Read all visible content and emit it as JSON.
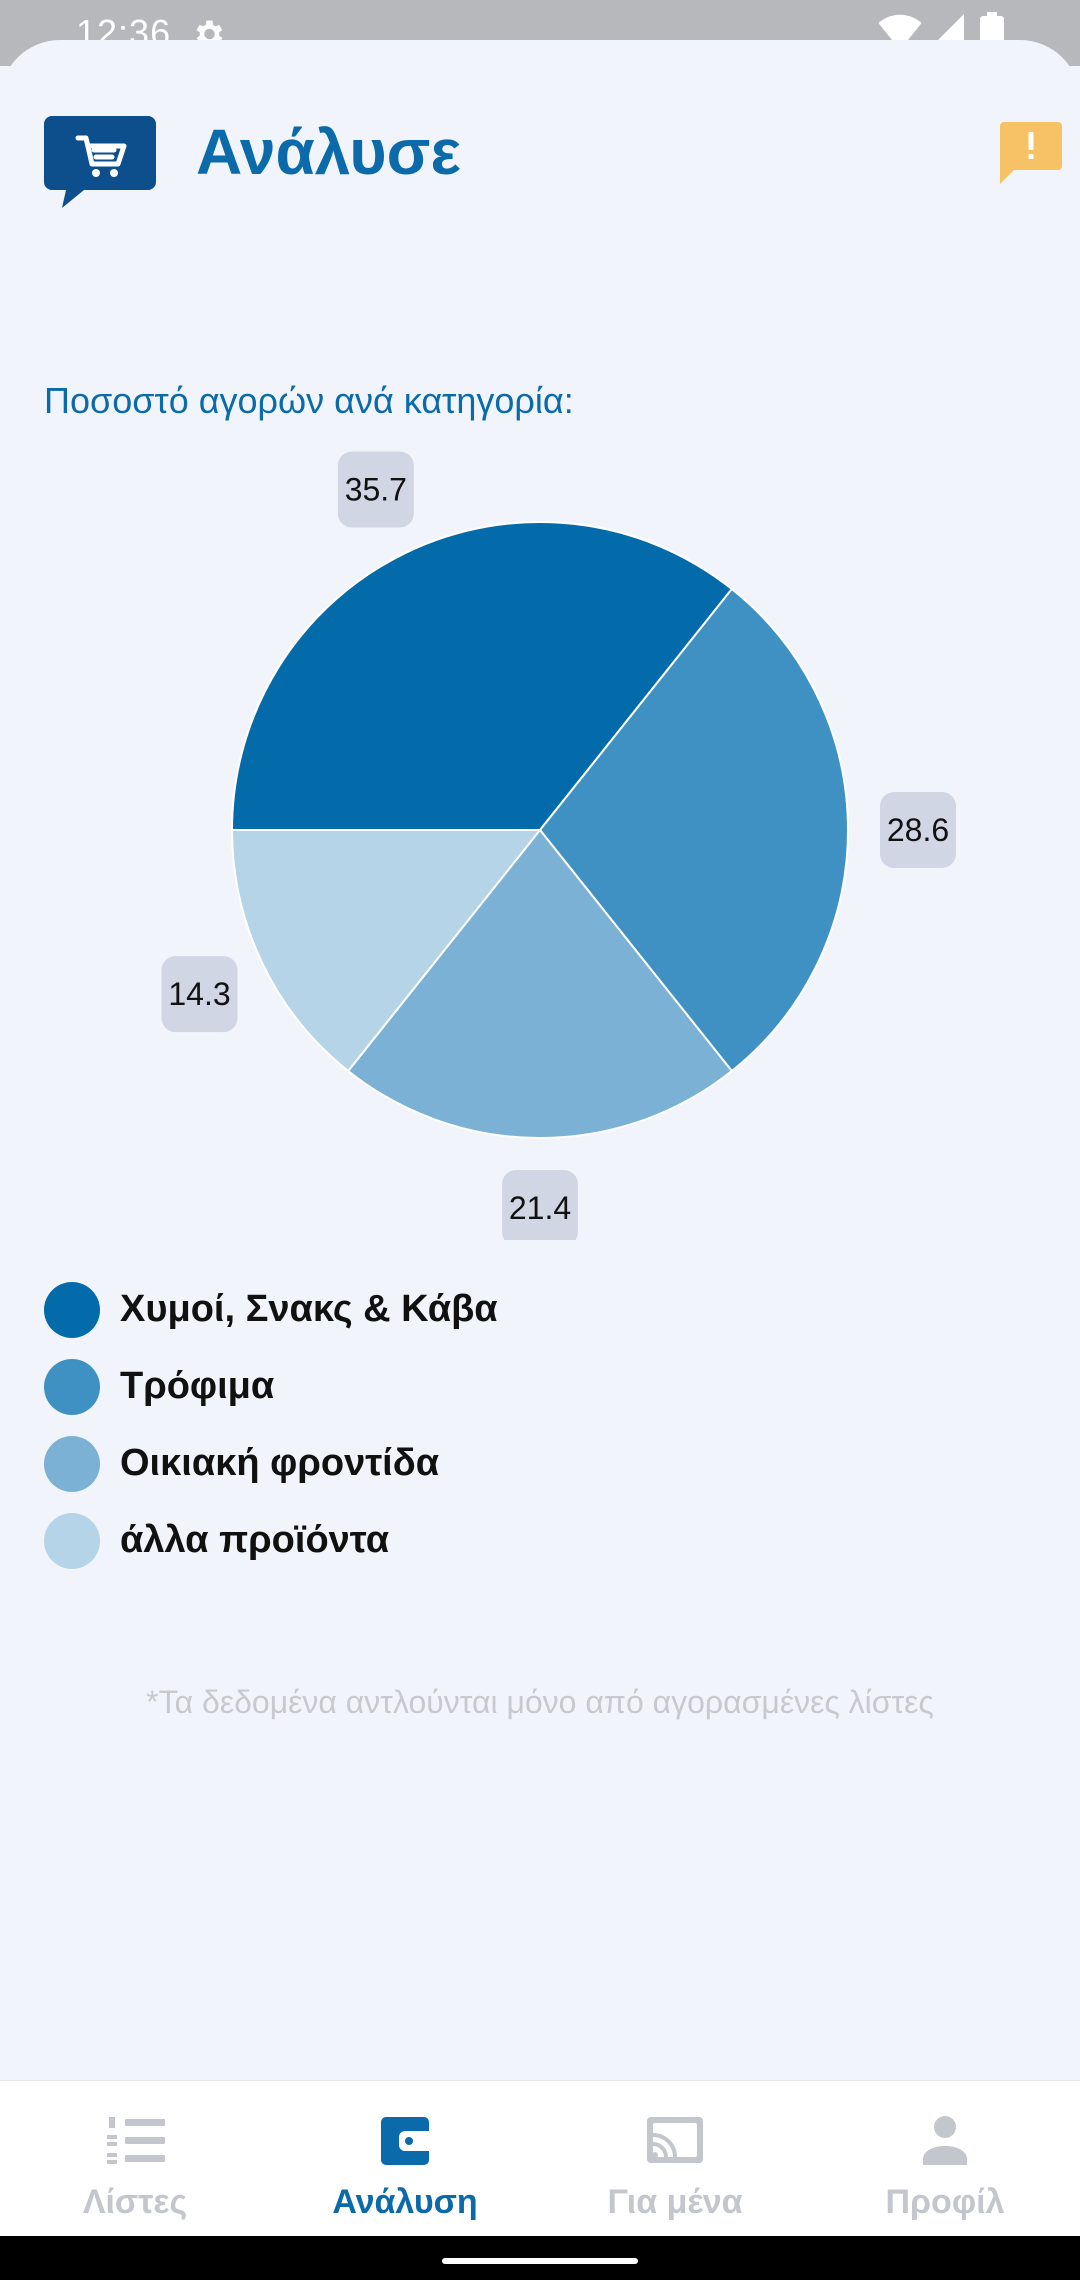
{
  "status_bar": {
    "time": "12:36"
  },
  "header": {
    "title": "Ανάλυσε"
  },
  "analysis": {
    "section_label": "Ποσοστό αγορών ανά κατηγορία:",
    "footnote": "*Τα δεδομένα αντλούνται μόνο από αγορασμένες λίστες"
  },
  "chart_data": {
    "type": "pie",
    "categories": [
      "Χυμοί, Σνακς & Κάβα",
      "Τρόφιμα",
      "Οικιακή φροντίδα",
      "άλλα προϊόντα"
    ],
    "values": [
      35.7,
      28.6,
      21.4,
      14.3
    ],
    "labels": [
      "35.7",
      "28.6",
      "21.4",
      "14.3"
    ],
    "colors": [
      "#046bab",
      "#3f91c3",
      "#7bb1d4",
      "#b6d4e7"
    ],
    "legend": "bottom"
  },
  "bottom_nav": {
    "items": [
      {
        "label": "Λίστες",
        "icon": "list-numbered-icon"
      },
      {
        "label": "Ανάλυση",
        "icon": "wallet-icon"
      },
      {
        "label": "Για μένα",
        "icon": "cast-icon"
      },
      {
        "label": "Προφίλ",
        "icon": "person-icon"
      }
    ]
  }
}
